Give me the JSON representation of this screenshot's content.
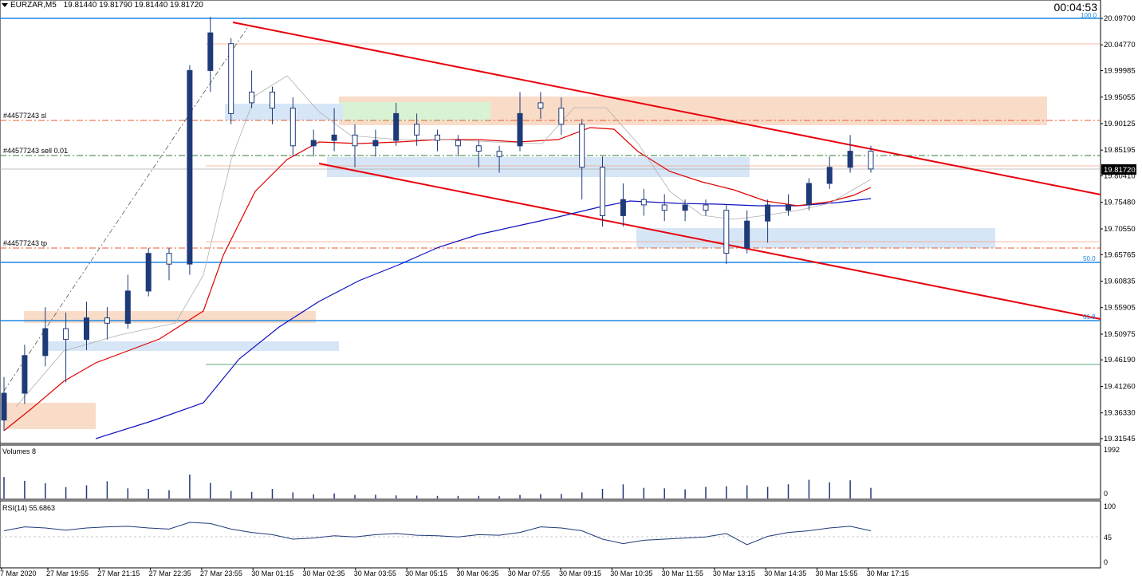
{
  "header": {
    "symbol": "EURZAR,M5",
    "ohlc": "19.81440 19.81790 19.81440 19.81720",
    "timer": "00:04:53"
  },
  "price_axis": {
    "labels": [
      "20.09700",
      "20.04770",
      "19.99985",
      "19.95055",
      "19.90125",
      "19.85195",
      "19.80410",
      "19.75480",
      "19.70550",
      "19.65765",
      "19.60835",
      "19.55905",
      "19.50975",
      "19.46190",
      "19.41260",
      "19.36330",
      "19.31545"
    ],
    "current_price": "19.81720"
  },
  "fib_labels": {
    "top": "100.0",
    "mid": "50.0",
    "low": "61.8"
  },
  "order_labels": {
    "sl": "#44577243 sl",
    "sell": "#44577243 sell 0.01",
    "tp": "#44577243 tp"
  },
  "volumes": {
    "label": "Volumes 8",
    "max": "1992",
    "min": "0"
  },
  "rsi": {
    "label": "RSI(14) 55.6863",
    "levels": [
      "100",
      "45",
      "0"
    ]
  },
  "time_axis": [
    "7 Mar 2020",
    "27 Mar 19:55",
    "27 Mar 21:15",
    "27 Mar 22:35",
    "27 Mar 23:55",
    "30 Mar 01:15",
    "30 Mar 02:35",
    "30 Mar 03:55",
    "30 Mar 05:15",
    "30 Mar 06:35",
    "30 Mar 07:55",
    "30 Mar 09:15",
    "30 Mar 10:35",
    "30 Mar 11:55",
    "30 Mar 13:15",
    "30 Mar 14:35",
    "30 Mar 15:55",
    "30 Mar 17:15"
  ],
  "colors": {
    "bull": "#1e3a78",
    "ma_fast": "#e00000",
    "ma_slow": "#1010c0",
    "trendline": "#e8000b",
    "fib": "#1e88e5",
    "zone_orange": "#f9dcc8",
    "zone_blue": "#d6e6f7",
    "zone_green": "#d9f2d4"
  },
  "price_series": [
    {
      "t": 0,
      "o": 19.35,
      "c": 19.4,
      "h": 19.43,
      "l": 19.33
    },
    {
      "t": 1,
      "o": 19.4,
      "c": 19.47,
      "h": 19.49,
      "l": 19.38
    },
    {
      "t": 2,
      "o": 19.47,
      "c": 19.52,
      "h": 19.56,
      "l": 19.45
    },
    {
      "t": 3,
      "o": 19.52,
      "c": 19.5,
      "h": 19.55,
      "l": 19.42
    },
    {
      "t": 4,
      "o": 19.5,
      "c": 19.54,
      "h": 19.57,
      "l": 19.48
    },
    {
      "t": 5,
      "o": 19.54,
      "c": 19.53,
      "h": 19.56,
      "l": 19.5
    },
    {
      "t": 6,
      "o": 19.53,
      "c": 19.59,
      "h": 19.62,
      "l": 19.52
    },
    {
      "t": 7,
      "o": 19.59,
      "c": 19.66,
      "h": 19.67,
      "l": 19.58
    },
    {
      "t": 8,
      "o": 19.66,
      "c": 19.64,
      "h": 19.67,
      "l": 19.61
    },
    {
      "t": 9,
      "o": 19.64,
      "c": 20.0,
      "h": 20.01,
      "l": 19.62
    },
    {
      "t": 10,
      "o": 20.0,
      "c": 20.07,
      "h": 20.1,
      "l": 19.96
    },
    {
      "t": 11,
      "o": 20.05,
      "c": 19.92,
      "h": 20.06,
      "l": 19.9
    },
    {
      "t": 12,
      "o": 19.96,
      "c": 19.94,
      "h": 20.0,
      "l": 19.93
    },
    {
      "t": 13,
      "o": 19.96,
      "c": 19.93,
      "h": 19.97,
      "l": 19.9
    },
    {
      "t": 14,
      "o": 19.93,
      "c": 19.86,
      "h": 19.95,
      "l": 19.84
    },
    {
      "t": 15,
      "o": 19.86,
      "c": 19.87,
      "h": 19.89,
      "l": 19.84
    },
    {
      "t": 16,
      "o": 19.87,
      "c": 19.88,
      "h": 19.93,
      "l": 19.85
    },
    {
      "t": 17,
      "o": 19.88,
      "c": 19.86,
      "h": 19.9,
      "l": 19.82
    },
    {
      "t": 18,
      "o": 19.86,
      "c": 19.87,
      "h": 19.89,
      "l": 19.84
    },
    {
      "t": 19,
      "o": 19.87,
      "c": 19.92,
      "h": 19.94,
      "l": 19.86
    },
    {
      "t": 20,
      "o": 19.9,
      "c": 19.88,
      "h": 19.92,
      "l": 19.86
    },
    {
      "t": 21,
      "o": 19.88,
      "c": 19.87,
      "h": 19.89,
      "l": 19.85
    },
    {
      "t": 22,
      "o": 19.87,
      "c": 19.86,
      "h": 19.88,
      "l": 19.84
    },
    {
      "t": 23,
      "o": 19.86,
      "c": 19.85,
      "h": 19.87,
      "l": 19.82
    },
    {
      "t": 24,
      "o": 19.85,
      "c": 19.84,
      "h": 19.86,
      "l": 19.81
    },
    {
      "t": 25,
      "o": 19.86,
      "c": 19.92,
      "h": 19.96,
      "l": 19.85
    },
    {
      "t": 26,
      "o": 19.94,
      "c": 19.93,
      "h": 19.96,
      "l": 19.91
    },
    {
      "t": 27,
      "o": 19.93,
      "c": 19.9,
      "h": 19.95,
      "l": 19.88
    },
    {
      "t": 28,
      "o": 19.9,
      "c": 19.82,
      "h": 19.91,
      "l": 19.76
    },
    {
      "t": 29,
      "o": 19.82,
      "c": 19.73,
      "h": 19.84,
      "l": 19.71
    },
    {
      "t": 30,
      "o": 19.73,
      "c": 19.76,
      "h": 19.79,
      "l": 19.71
    },
    {
      "t": 31,
      "o": 19.76,
      "c": 19.75,
      "h": 19.78,
      "l": 19.73
    },
    {
      "t": 32,
      "o": 19.75,
      "c": 19.74,
      "h": 19.77,
      "l": 19.72
    },
    {
      "t": 33,
      "o": 19.74,
      "c": 19.75,
      "h": 19.76,
      "l": 19.72
    },
    {
      "t": 34,
      "o": 19.75,
      "c": 19.74,
      "h": 19.76,
      "l": 19.73
    },
    {
      "t": 35,
      "o": 19.74,
      "c": 19.66,
      "h": 19.75,
      "l": 19.64
    },
    {
      "t": 36,
      "o": 19.67,
      "c": 19.72,
      "h": 19.74,
      "l": 19.66
    },
    {
      "t": 37,
      "o": 19.72,
      "c": 19.75,
      "h": 19.76,
      "l": 19.68
    },
    {
      "t": 38,
      "o": 19.74,
      "c": 19.75,
      "h": 19.77,
      "l": 19.73
    },
    {
      "t": 39,
      "o": 19.75,
      "c": 19.79,
      "h": 19.8,
      "l": 19.74
    },
    {
      "t": 40,
      "o": 19.79,
      "c": 19.82,
      "h": 19.84,
      "l": 19.78
    },
    {
      "t": 41,
      "o": 19.82,
      "c": 19.85,
      "h": 19.88,
      "l": 19.81
    },
    {
      "t": 42,
      "o": 19.85,
      "c": 19.817,
      "h": 19.86,
      "l": 19.81
    }
  ],
  "volume_series": [
    850,
    700,
    600,
    450,
    520,
    680,
    400,
    380,
    330,
    950,
    620,
    300,
    260,
    380,
    240,
    160,
    200,
    140,
    150,
    120,
    110,
    100,
    100,
    100,
    90,
    140,
    170,
    180,
    240,
    380,
    560,
    420,
    400,
    360,
    460,
    480,
    520,
    460,
    560,
    740,
    640,
    720,
    420
  ],
  "rsi_series": [
    55,
    62,
    60,
    56,
    60,
    62,
    63,
    60,
    58,
    70,
    68,
    58,
    52,
    48,
    40,
    42,
    46,
    44,
    48,
    50,
    47,
    46,
    44,
    48,
    47,
    52,
    62,
    60,
    55,
    40,
    32,
    38,
    40,
    42,
    44,
    50,
    30,
    45,
    52,
    55,
    60,
    63,
    55
  ]
}
